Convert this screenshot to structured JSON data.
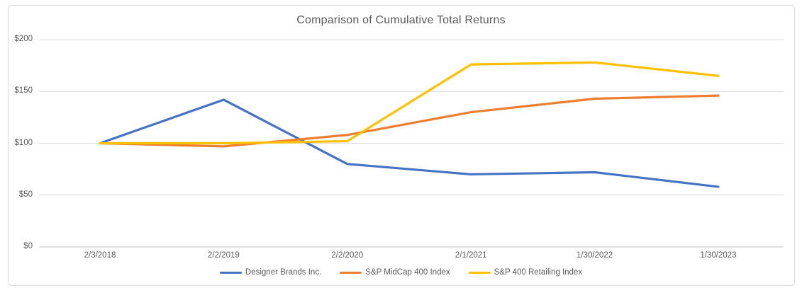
{
  "chart_data": {
    "type": "line",
    "title": "Comparison of Cumulative Total Returns",
    "categories": [
      "2/3/2018",
      "2/2/2019",
      "2/2/2020",
      "2/1/2021",
      "1/30/2022",
      "1/30/2023"
    ],
    "series": [
      {
        "name": "Designer Brands Inc.",
        "color": "#4472C4",
        "values": [
          100,
          142,
          80,
          70,
          72,
          58
        ]
      },
      {
        "name": "S&P MidCap 400 Index",
        "color": "#ED7D31",
        "values": [
          100,
          97,
          108,
          130,
          143,
          146
        ]
      },
      {
        "name": "S&P 400 Retailing Index",
        "color": "#FFC000",
        "values": [
          100,
          100,
          102,
          176,
          178,
          165
        ]
      }
    ],
    "y_ticks": [
      {
        "label": "$0",
        "value": 0
      },
      {
        "label": "$50",
        "value": 50
      },
      {
        "label": "$100",
        "value": 100
      },
      {
        "label": "$150",
        "value": 150
      },
      {
        "label": "$200",
        "value": 200
      }
    ],
    "ylim": [
      0,
      200
    ],
    "grid": true,
    "legend_position": "bottom",
    "colors": {
      "gridline": "#D9D9D9",
      "axis_line": "#BFBFBF",
      "text": "#595959"
    }
  }
}
